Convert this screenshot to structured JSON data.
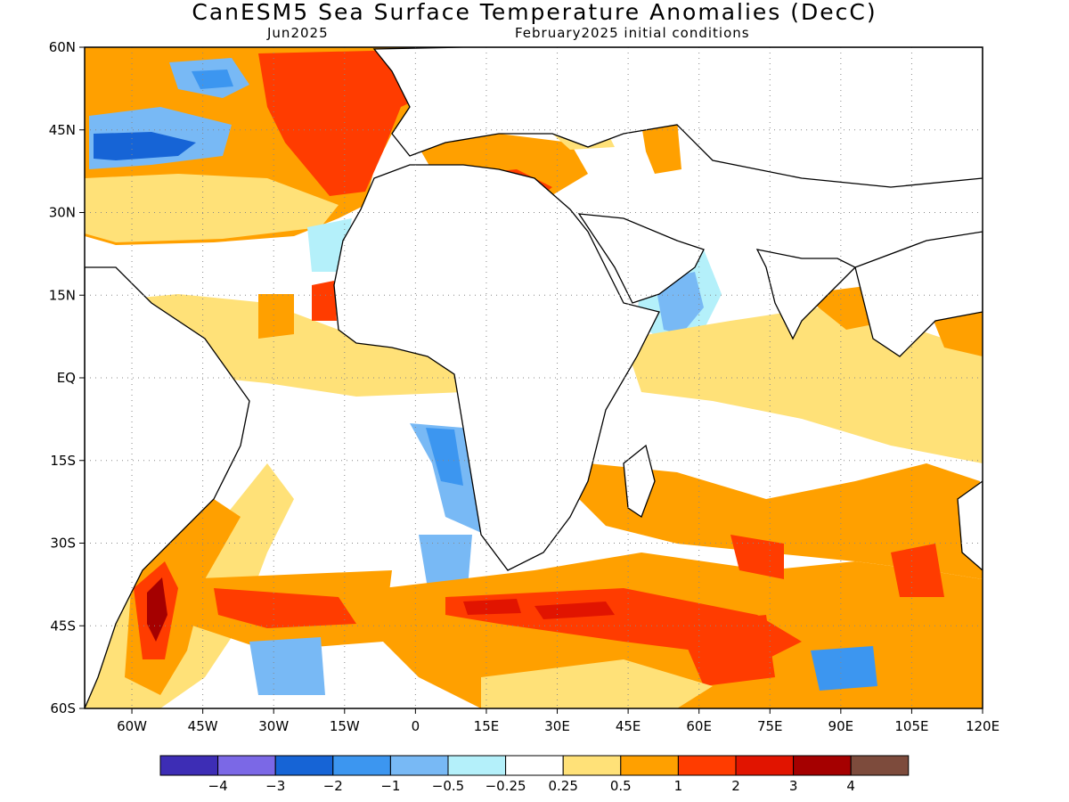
{
  "title": "CanESM5 Sea Surface Temperature Anomalies (DecC)",
  "subtitle_left": "Jun2025",
  "subtitle_right": "February2025 initial conditions",
  "map": {
    "lon_range": [
      -70,
      120
    ],
    "lat_range": [
      -60,
      60
    ],
    "lat_ticks": [
      {
        "value": 60,
        "label": "60N"
      },
      {
        "value": 45,
        "label": "45N"
      },
      {
        "value": 30,
        "label": "30N"
      },
      {
        "value": 15,
        "label": "15N"
      },
      {
        "value": 0,
        "label": "EQ"
      },
      {
        "value": -15,
        "label": "15S"
      },
      {
        "value": -30,
        "label": "30S"
      },
      {
        "value": -45,
        "label": "45S"
      },
      {
        "value": -60,
        "label": "60S"
      }
    ],
    "lon_ticks": [
      {
        "value": -60,
        "label": "60W"
      },
      {
        "value": -45,
        "label": "45W"
      },
      {
        "value": -30,
        "label": "30W"
      },
      {
        "value": -15,
        "label": "15W"
      },
      {
        "value": 0,
        "label": "0"
      },
      {
        "value": 15,
        "label": "15E"
      },
      {
        "value": 30,
        "label": "30E"
      },
      {
        "value": 45,
        "label": "45E"
      },
      {
        "value": 60,
        "label": "60E"
      },
      {
        "value": 75,
        "label": "75E"
      },
      {
        "value": 90,
        "label": "90E"
      },
      {
        "value": 105,
        "label": "105E"
      },
      {
        "value": 120,
        "label": "120E"
      }
    ],
    "grid": "dotted"
  },
  "colorbar": {
    "colors": [
      "#3d2db5",
      "#7b68e6",
      "#1664d6",
      "#3c96f0",
      "#78b9f5",
      "#b4f0fa",
      "#ffffff",
      "#ffe178",
      "#ffa000",
      "#ff3c00",
      "#e11400",
      "#a50000",
      "#7d4b3c"
    ],
    "labels": [
      "−4",
      "−3",
      "−2",
      "−1",
      "−0.5",
      "−0.25",
      "0.25",
      "0.5",
      "1",
      "2",
      "3",
      "4"
    ]
  }
}
